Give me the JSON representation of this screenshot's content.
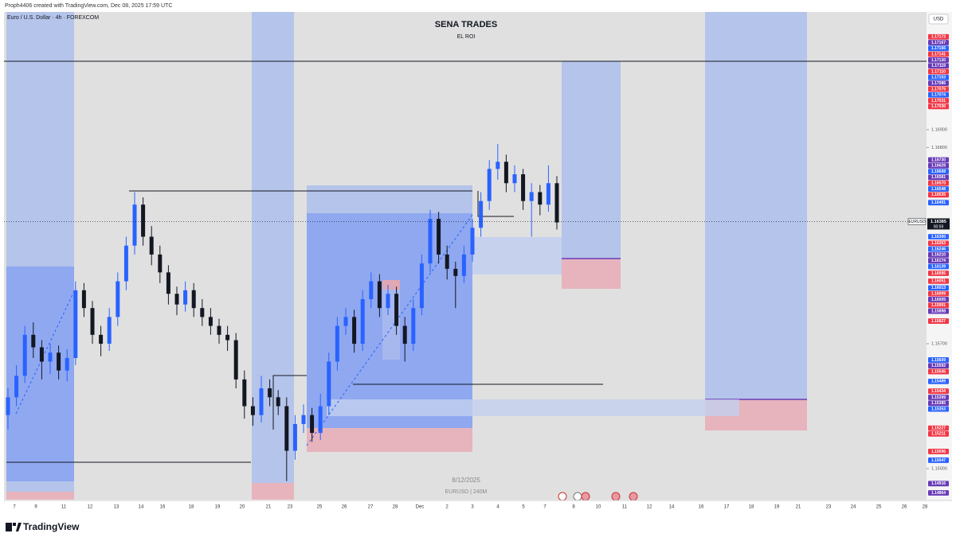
{
  "header": {
    "attribution": "Proph4406 created with TradingView.com, Dec 08, 2025 17:59 UTC",
    "logo": "TradingView"
  },
  "chart_data": {
    "type": "candlestick",
    "symbol_title": "Euro / U.S. Dollar · 4h · FOREXCOM",
    "title": "SENA TRADES",
    "subtitle": "EL ROI",
    "currency": "USD",
    "up_color": "#2962ff",
    "down_color": "#131722",
    "ylim": [
      1.14826,
      1.1756
    ],
    "yticks": [
      {
        "value": 1.169,
        "label": "1.16900"
      },
      {
        "value": 1.168,
        "label": "1.16800"
      },
      {
        "value": 1.157,
        "label": "1.15700"
      },
      {
        "value": 1.15,
        "label": "1.15000"
      }
    ],
    "x_labels": [
      "7",
      "9",
      "11",
      "12",
      "13",
      "14",
      "16",
      "18",
      "19",
      "20",
      "21",
      "23",
      "25",
      "26",
      "27",
      "28",
      "Dec",
      "2",
      "3",
      "4",
      "5",
      "7",
      "8",
      "10",
      "11",
      "12",
      "14",
      "16",
      "17",
      "18",
      "19",
      "21",
      "23",
      "24",
      "25",
      "26",
      "28"
    ],
    "candles": [
      [
        1.153,
        1.1545,
        1.1522,
        1.154
      ],
      [
        1.154,
        1.1558,
        1.1535,
        1.1552
      ],
      [
        1.1552,
        1.158,
        1.1548,
        1.1575
      ],
      [
        1.1575,
        1.1582,
        1.1562,
        1.1568
      ],
      [
        1.1568,
        1.1572,
        1.155,
        1.156
      ],
      [
        1.156,
        1.157,
        1.1553,
        1.1565
      ],
      [
        1.1565,
        1.1569,
        1.155,
        1.1555
      ],
      [
        1.1555,
        1.1567,
        1.1549,
        1.1562
      ],
      [
        1.1562,
        1.1605,
        1.1558,
        1.16
      ],
      [
        1.16,
        1.1604,
        1.1585,
        1.159
      ],
      [
        1.159,
        1.1594,
        1.157,
        1.1575
      ],
      [
        1.1575,
        1.158,
        1.1563,
        1.157
      ],
      [
        1.157,
        1.159,
        1.1566,
        1.1585
      ],
      [
        1.1585,
        1.161,
        1.158,
        1.1605
      ],
      [
        1.1605,
        1.163,
        1.16,
        1.1625
      ],
      [
        1.1625,
        1.1655,
        1.162,
        1.1648
      ],
      [
        1.1648,
        1.1652,
        1.1625,
        1.163
      ],
      [
        1.163,
        1.1636,
        1.1614,
        1.162
      ],
      [
        1.162,
        1.1625,
        1.1604,
        1.161
      ],
      [
        1.161,
        1.1614,
        1.1592,
        1.1598
      ],
      [
        1.1598,
        1.1602,
        1.1586,
        1.1592
      ],
      [
        1.1592,
        1.1605,
        1.1588,
        1.16
      ],
      [
        1.16,
        1.1604,
        1.1585,
        1.159
      ],
      [
        1.159,
        1.1595,
        1.158,
        1.1585
      ],
      [
        1.1585,
        1.159,
        1.1575,
        1.158
      ],
      [
        1.158,
        1.1584,
        1.157,
        1.1575
      ],
      [
        1.1575,
        1.158,
        1.1566,
        1.1572
      ],
      [
        1.1572,
        1.1576,
        1.1545,
        1.155
      ],
      [
        1.155,
        1.1555,
        1.1528,
        1.1535
      ],
      [
        1.1535,
        1.154,
        1.1524,
        1.153
      ],
      [
        1.153,
        1.1552,
        1.1526,
        1.1545
      ],
      [
        1.1545,
        1.155,
        1.1535,
        1.154
      ],
      [
        1.154,
        1.1544,
        1.153,
        1.1535
      ],
      [
        1.1535,
        1.154,
        1.1493,
        1.151
      ],
      [
        1.151,
        1.153,
        1.1505,
        1.1525
      ],
      [
        1.1525,
        1.1536,
        1.152,
        1.153
      ],
      [
        1.153,
        1.1534,
        1.1515,
        1.152
      ],
      [
        1.152,
        1.1542,
        1.1516,
        1.1535
      ],
      [
        1.1535,
        1.1565,
        1.153,
        1.156
      ],
      [
        1.156,
        1.1585,
        1.1555,
        1.158
      ],
      [
        1.158,
        1.159,
        1.1575,
        1.1585
      ],
      [
        1.1585,
        1.1589,
        1.1565,
        1.157
      ],
      [
        1.157,
        1.16,
        1.1566,
        1.1595
      ],
      [
        1.1595,
        1.161,
        1.159,
        1.1605
      ],
      [
        1.1605,
        1.1609,
        1.1585,
        1.159
      ],
      [
        1.159,
        1.1603,
        1.1586,
        1.1598
      ],
      [
        1.1598,
        1.1602,
        1.1575,
        1.158
      ],
      [
        1.158,
        1.1585,
        1.156,
        1.157
      ],
      [
        1.157,
        1.1595,
        1.1566,
        1.159
      ],
      [
        1.159,
        1.162,
        1.1586,
        1.1615
      ],
      [
        1.1615,
        1.1645,
        1.161,
        1.164
      ],
      [
        1.164,
        1.1644,
        1.1615,
        1.162
      ],
      [
        1.162,
        1.1625,
        1.1606,
        1.1612
      ],
      [
        1.1612,
        1.1616,
        1.159,
        1.1608
      ],
      [
        1.1608,
        1.1625,
        1.1604,
        1.162
      ],
      [
        1.162,
        1.164,
        1.1616,
        1.1635
      ],
      [
        1.1635,
        1.1655,
        1.163,
        1.165
      ],
      [
        1.165,
        1.1673,
        1.1645,
        1.1668
      ],
      [
        1.1668,
        1.1682,
        1.1662,
        1.1672
      ],
      [
        1.1672,
        1.1676,
        1.1655,
        1.166
      ],
      [
        1.166,
        1.167,
        1.1655,
        1.1665
      ],
      [
        1.1665,
        1.1668,
        1.1645,
        1.165
      ],
      [
        1.165,
        1.166,
        1.163,
        1.1655
      ],
      [
        1.1655,
        1.1659,
        1.1642,
        1.1648
      ],
      [
        1.1648,
        1.167,
        1.1644,
        1.166
      ],
      [
        1.166,
        1.1664,
        1.1634,
        1.1638
      ]
    ],
    "current_price": {
      "symbol": "EURUSD",
      "value": 1.16385,
      "countdown": "00:59"
    },
    "price_labels": [
      {
        "value": 1.17173,
        "label": "1.17173",
        "color": "#f23645"
      },
      {
        "value": 1.17167,
        "label": "1.17167",
        "color": "#673ab7"
      },
      {
        "value": 1.17166,
        "label": "1.17166",
        "color": "#2962ff"
      },
      {
        "value": 1.17141,
        "label": "1.17141",
        "color": "#f23645"
      },
      {
        "value": 1.1713,
        "label": "1.17130",
        "color": "#673ab7"
      },
      {
        "value": 1.17119,
        "label": "1.17119",
        "color": "#673ab7"
      },
      {
        "value": 1.1711,
        "label": "1.17110",
        "color": "#f23645"
      },
      {
        "value": 1.17103,
        "label": "1.17103",
        "color": "#2962ff"
      },
      {
        "value": 1.17086,
        "label": "1.17086",
        "color": "#673ab7"
      },
      {
        "value": 1.17075,
        "label": "1.17075",
        "color": "#f23645"
      },
      {
        "value": 1.17074,
        "label": "1.17074",
        "color": "#2962ff"
      },
      {
        "value": 1.17031,
        "label": "1.17031",
        "color": "#f23645"
      },
      {
        "value": 1.1703,
        "label": "1.17030",
        "color": "#f23645"
      },
      {
        "value": 1.1673,
        "label": "1.16730",
        "color": "#673ab7"
      },
      {
        "value": 1.16629,
        "label": "1.16629",
        "color": "#673ab7"
      },
      {
        "value": 1.16608,
        "label": "1.16608",
        "color": "#2962ff"
      },
      {
        "value": 1.16581,
        "label": "1.16581",
        "color": "#673ab7"
      },
      {
        "value": 1.1657,
        "label": "1.16570",
        "color": "#f23645"
      },
      {
        "value": 1.16548,
        "label": "1.16548",
        "color": "#2962ff"
      },
      {
        "value": 1.16535,
        "label": "1.16535",
        "color": "#f23645"
      },
      {
        "value": 1.16491,
        "label": "1.16491",
        "color": "#2962ff"
      },
      {
        "value": 1.163,
        "label": "1.16300",
        "color": "#2962ff"
      },
      {
        "value": 1.16263,
        "label": "1.16263",
        "color": "#f23645"
      },
      {
        "value": 1.16246,
        "label": "1.16246",
        "color": "#2962ff"
      },
      {
        "value": 1.1621,
        "label": "1.16210",
        "color": "#673ab7"
      },
      {
        "value": 1.16174,
        "label": "1.16174",
        "color": "#673ab7"
      },
      {
        "value": 1.16139,
        "label": "1.16139",
        "color": "#2962ff"
      },
      {
        "value": 1.16095,
        "label": "1.16095",
        "color": "#f23645"
      },
      {
        "value": 1.16051,
        "label": "1.16051",
        "color": "#f23645"
      },
      {
        "value": 1.16013,
        "label": "1.16013",
        "color": "#2962ff"
      },
      {
        "value": 1.16009,
        "label": "1.16009",
        "color": "#f23645"
      },
      {
        "value": 1.16005,
        "label": "1.16005",
        "color": "#673ab7"
      },
      {
        "value": 1.15991,
        "label": "1.15991",
        "color": "#f23645"
      },
      {
        "value": 1.15898,
        "label": "1.15898",
        "color": "#673ab7"
      },
      {
        "value": 1.15827,
        "label": "1.15827",
        "color": "#f23645"
      },
      {
        "value": 1.15609,
        "label": "1.15609",
        "color": "#2962ff"
      },
      {
        "value": 1.15592,
        "label": "1.15592",
        "color": "#673ab7"
      },
      {
        "value": 1.15545,
        "label": "1.15545",
        "color": "#f23645"
      },
      {
        "value": 1.15489,
        "label": "1.15489",
        "color": "#2962ff"
      },
      {
        "value": 1.15434,
        "label": "1.15434",
        "color": "#f23645"
      },
      {
        "value": 1.15399,
        "label": "1.15399",
        "color": "#673ab7"
      },
      {
        "value": 1.15385,
        "label": "1.15385",
        "color": "#673ab7"
      },
      {
        "value": 1.15353,
        "label": "1.15353",
        "color": "#2962ff"
      },
      {
        "value": 1.15227,
        "label": "1.15227",
        "color": "#f23645"
      },
      {
        "value": 1.15211,
        "label": "1.15211",
        "color": "#f23645"
      },
      {
        "value": 1.15096,
        "label": "1.15096",
        "color": "#f23645"
      },
      {
        "value": 1.15047,
        "label": "1.15047",
        "color": "#2962ff"
      },
      {
        "value": 1.14916,
        "label": "1.14916",
        "color": "#673ab7"
      },
      {
        "value": 1.14864,
        "label": "1.14864",
        "color": "#673ab7"
      }
    ],
    "annotations": {
      "date": "8/12/2025",
      "interval": "EURUSD | 240M"
    }
  }
}
